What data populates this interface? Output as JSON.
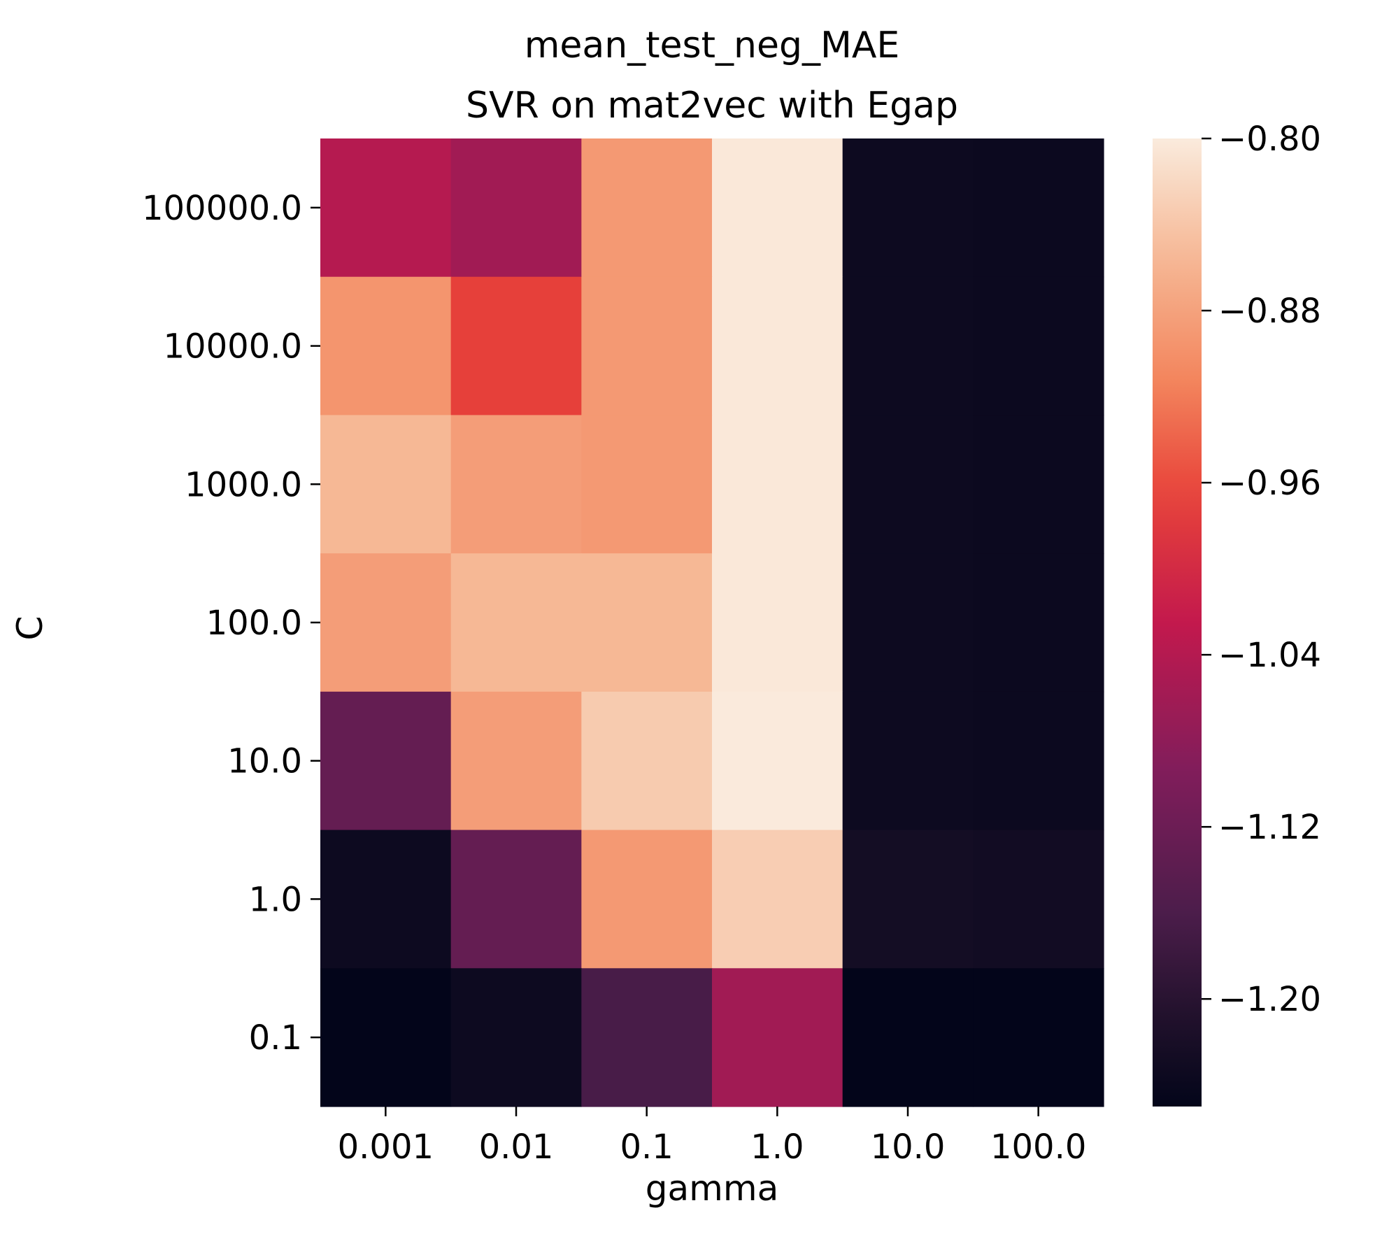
{
  "chart_data": {
    "type": "heatmap",
    "title_lines": [
      "mean_test_neg_MAE",
      "SVR on mat2vec with Egap"
    ],
    "xlabel": "gamma",
    "ylabel": "C",
    "x_categories": [
      "0.001",
      "0.01",
      "0.1",
      "1.0",
      "10.0",
      "100.0"
    ],
    "y_categories": [
      "100000.0",
      "10000.0",
      "1000.0",
      "100.0",
      "10.0",
      "1.0",
      "0.1"
    ],
    "values": [
      [
        -1.04,
        -1.06,
        -0.89,
        -0.803,
        -1.235,
        -1.237
      ],
      [
        -0.895,
        -0.97,
        -0.89,
        -0.803,
        -1.235,
        -1.237
      ],
      [
        -0.855,
        -0.885,
        -0.89,
        -0.803,
        -1.235,
        -1.237
      ],
      [
        -0.885,
        -0.855,
        -0.855,
        -0.803,
        -1.235,
        -1.237
      ],
      [
        -1.13,
        -0.885,
        -0.835,
        -0.801,
        -1.235,
        -1.237
      ],
      [
        -1.235,
        -1.13,
        -0.89,
        -0.832,
        -1.225,
        -1.228
      ],
      [
        -1.25,
        -1.235,
        -1.165,
        -1.06,
        -1.25,
        -1.25
      ]
    ],
    "colorbar": {
      "min": -1.25,
      "max": -0.8,
      "ticks": [
        -0.8,
        -0.88,
        -0.96,
        -1.04,
        -1.12,
        -1.2
      ],
      "tick_labels": [
        "−0.80",
        "−0.88",
        "−0.96",
        "−1.04",
        "−1.12",
        "−1.20"
      ],
      "colormap": "rocket"
    },
    "grid": false
  }
}
